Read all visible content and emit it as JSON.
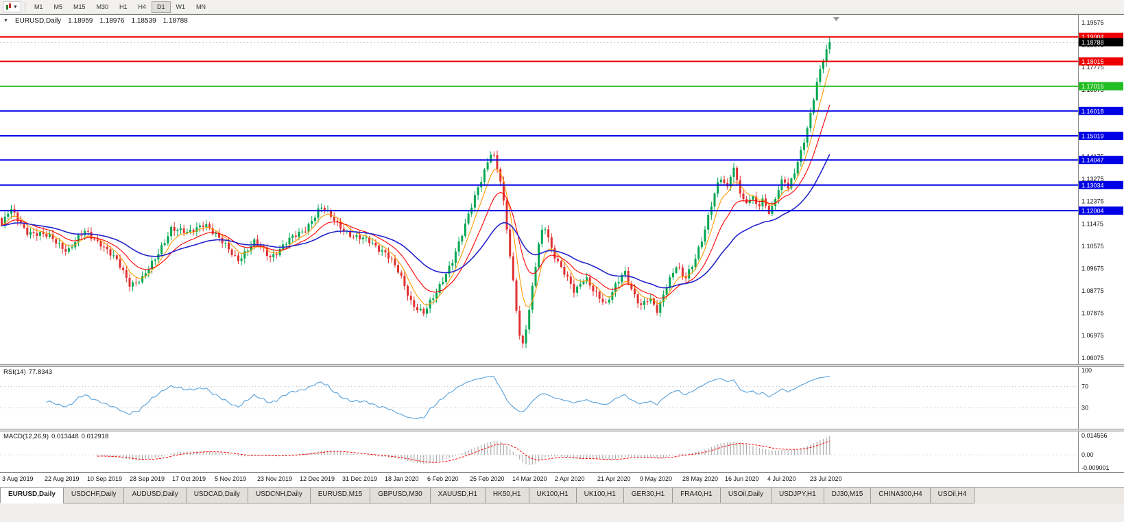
{
  "toolbar": {
    "chart_type_caret": "▼",
    "timeframes": [
      "M1",
      "M5",
      "M15",
      "M30",
      "H1",
      "H4",
      "D1",
      "W1",
      "MN"
    ],
    "active_timeframe": "D1"
  },
  "header": {
    "collapse_icon": "▼",
    "symbol": "EURUSD,Daily",
    "open": "1.18959",
    "high": "1.18976",
    "low": "1.18539",
    "close": "1.18788"
  },
  "chart_data": {
    "type": "candlestick",
    "symbol": "EURUSD",
    "timeframe": "Daily",
    "price_axis": {
      "max": 1.1988,
      "min": 1.0582,
      "labels": [
        "1.19575",
        "1.18675",
        "1.17775",
        "1.16875",
        "1.15975",
        "1.15075",
        "1.14175",
        "1.13275",
        "1.12375",
        "1.11475",
        "1.10575",
        "1.09675",
        "1.08775",
        "1.07875",
        "1.06975",
        "1.06075"
      ]
    },
    "current_price": {
      "price": 1.18788,
      "label": "1.18788",
      "tag_color": "#000000"
    },
    "levels": [
      {
        "price": 1.19004,
        "label": "1.19004",
        "color": "#EE0000"
      },
      {
        "price": 1.18015,
        "label": "1.18015",
        "color": "#EE0000"
      },
      {
        "price": 1.17016,
        "label": "1.17016",
        "color": "#23BE23"
      },
      {
        "price": 1.16018,
        "label": "1.16018",
        "color": "#0000E6"
      },
      {
        "price": 1.15019,
        "label": "1.15019",
        "color": "#0000E6"
      },
      {
        "price": 1.14047,
        "label": "1.14047",
        "color": "#0000E6"
      },
      {
        "price": 1.13034,
        "label": "1.13034",
        "color": "#0000E6"
      },
      {
        "price": 1.12004,
        "label": "1.12004",
        "color": "#0000E6"
      }
    ],
    "candles": {
      "count": 260,
      "up_color": "#00A651",
      "down_color": "#E03030",
      "anchors": [
        [
          0.0,
          1.114
        ],
        [
          0.01,
          1.1205
        ],
        [
          0.03,
          1.112
        ],
        [
          0.06,
          1.109
        ],
        [
          0.08,
          1.104
        ],
        [
          0.1,
          1.1115
        ],
        [
          0.12,
          1.107
        ],
        [
          0.14,
          1.099
        ],
        [
          0.155,
          1.0905
        ],
        [
          0.17,
          1.093
        ],
        [
          0.185,
          1.1
        ],
        [
          0.205,
          1.1135
        ],
        [
          0.225,
          1.1105
        ],
        [
          0.245,
          1.1155
        ],
        [
          0.265,
          1.1075
        ],
        [
          0.285,
          1.1005
        ],
        [
          0.305,
          1.107
        ],
        [
          0.325,
          1.1015
        ],
        [
          0.345,
          1.1075
        ],
        [
          0.365,
          1.112
        ],
        [
          0.385,
          1.1215
        ],
        [
          0.405,
          1.115
        ],
        [
          0.425,
          1.1095
        ],
        [
          0.445,
          1.1075
        ],
        [
          0.465,
          1.103
        ],
        [
          0.48,
          1.0945
        ],
        [
          0.495,
          1.083
        ],
        [
          0.51,
          1.079
        ],
        [
          0.525,
          1.0865
        ],
        [
          0.545,
          1.101
        ],
        [
          0.56,
          1.114
        ],
        [
          0.575,
          1.129
        ],
        [
          0.592,
          1.145
        ],
        [
          0.603,
          1.131
        ],
        [
          0.612,
          1.107
        ],
        [
          0.62,
          1.085
        ],
        [
          0.628,
          1.064
        ],
        [
          0.638,
          1.082
        ],
        [
          0.648,
          1.105
        ],
        [
          0.655,
          1.1145
        ],
        [
          0.665,
          1.104
        ],
        [
          0.68,
          1.095
        ],
        [
          0.692,
          1.0865
        ],
        [
          0.705,
          1.0935
        ],
        [
          0.718,
          1.087
        ],
        [
          0.73,
          1.0815
        ],
        [
          0.742,
          1.09
        ],
        [
          0.752,
          1.0965
        ],
        [
          0.762,
          1.0875
        ],
        [
          0.772,
          1.081
        ],
        [
          0.782,
          1.0845
        ],
        [
          0.792,
          1.08
        ],
        [
          0.802,
          1.0895
        ],
        [
          0.815,
          1.0975
        ],
        [
          0.825,
          1.092
        ],
        [
          0.835,
          1.099
        ],
        [
          0.848,
          1.111
        ],
        [
          0.858,
          1.123
        ],
        [
          0.868,
          1.1335
        ],
        [
          0.876,
          1.129
        ],
        [
          0.883,
          1.139
        ],
        [
          0.89,
          1.13
        ],
        [
          0.898,
          1.1215
        ],
        [
          0.905,
          1.1255
        ],
        [
          0.913,
          1.1215
        ],
        [
          0.92,
          1.125
        ],
        [
          0.928,
          1.119
        ],
        [
          0.936,
          1.127
        ],
        [
          0.944,
          1.1325
        ],
        [
          0.95,
          1.1285
        ],
        [
          0.955,
          1.133
        ],
        [
          0.965,
          1.144
        ],
        [
          0.975,
          1.156
        ],
        [
          0.983,
          1.169
        ],
        [
          0.99,
          1.178
        ],
        [
          0.995,
          1.183
        ],
        [
          1.0,
          1.18788
        ]
      ]
    },
    "moving_averages": [
      {
        "period": 6,
        "color": "#FF9900"
      },
      {
        "period": 14,
        "color": "#FF0000"
      },
      {
        "period": 35,
        "color": "#2222CC"
      }
    ],
    "date_axis": [
      "3 Aug 2019",
      "22 Aug 2019",
      "10 Sep 2019",
      "28 Sep 2019",
      "17 Oct 2019",
      "5 Nov 2019",
      "23 Nov 2019",
      "12 Dec 2019",
      "31 Dec 2019",
      "18 Jan 2020",
      "6 Feb 2020",
      "25 Feb 2020",
      "14 Mar 2020",
      "2 Apr 2020",
      "21 Apr 2020",
      "9 May 2020",
      "28 May 2020",
      "16 Jun 2020",
      "4 Jul 2020",
      "23 Jul 2020"
    ],
    "rsi": {
      "label": "RSI(14)",
      "value": "77.8343",
      "line_color": "#56A0DC",
      "levels": [
        70,
        30
      ],
      "axis_labels": [
        "100",
        "70",
        "30"
      ]
    },
    "macd": {
      "label": "MACD(12,26,9)",
      "value_main": "0.013448",
      "value_signal": "0.012918",
      "axis_labels": [
        "0.014556",
        "0.00",
        "-0.009001"
      ],
      "histogram_color": "#ABABAB",
      "signal_color": "#FF0000"
    }
  },
  "tabs": [
    "EURUSD,Daily",
    "USDCHF,Daily",
    "AUDUSD,Daily",
    "USDCAD,Daily",
    "USDCNH,Daily",
    "EURUSD,M15",
    "GBPUSD,M30",
    "XAUUSD,H1",
    "HK50,H1",
    "UK100,H1",
    "UK100,H1",
    "GER30,H1",
    "FRA40,H1",
    "USOil,Daily",
    "USDJPY,H1",
    "DJ30,M15",
    "CHINA300,H4",
    "USOil,H4"
  ],
  "active_tab_index": 0
}
